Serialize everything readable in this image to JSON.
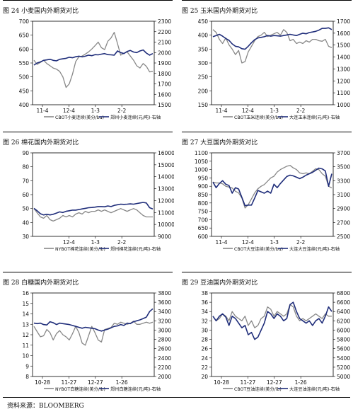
{
  "source": "资料来源：BLOOMBERG",
  "chart_data": [
    {
      "type": "line",
      "title": "图 24 小麦国内外期货对比",
      "x_ticks": [
        "11-4",
        "12-4",
        "1-3",
        "2-2"
      ],
      "left_axis": {
        "ylim": [
          400,
          700
        ],
        "ticks": [
          400,
          450,
          500,
          550,
          600,
          650,
          700
        ]
      },
      "right_axis": {
        "ylim": [
          1500,
          2300
        ],
        "ticks": [
          1500,
          1600,
          1700,
          1800,
          1900,
          2000,
          2100,
          2200,
          2300
        ]
      },
      "series": [
        {
          "name": "CBOT小麦连续(美分/bu)",
          "axis": "left",
          "color": "#888888",
          "values": [
            560,
            545,
            552,
            560,
            548,
            540,
            532,
            528,
            520,
            500,
            462,
            475,
            510,
            555,
            572,
            575,
            582,
            590,
            600,
            612,
            625,
            605,
            598,
            628,
            640,
            660,
            620,
            578,
            585,
            590,
            575,
            560,
            540,
            532,
            548,
            538,
            518,
            520
          ]
        },
        {
          "name": "郑州小麦连续(元/吨)-右轴",
          "axis": "right",
          "color": "#1f2d7a",
          "values": [
            1880,
            1900,
            1910,
            1925,
            1930,
            1935,
            1925,
            1920,
            1935,
            1940,
            1945,
            1955,
            1950,
            1960,
            1965,
            1958,
            1965,
            1975,
            1970,
            1980,
            1978,
            1985,
            1990,
            1980,
            1978,
            1975,
            2015,
            2000,
            1990,
            2010,
            2020,
            2005,
            2000,
            2015,
            2025,
            1995,
            1975,
            1990
          ]
        }
      ]
    },
    {
      "type": "line",
      "title": "图 25 玉米国内外期货对比",
      "x_ticks": [
        "11-4",
        "12-4",
        "1-3",
        "2-2"
      ],
      "left_axis": {
        "ylim": [
          150,
          450
        ],
        "ticks": [
          150,
          200,
          250,
          300,
          350,
          400,
          450
        ]
      },
      "right_axis": {
        "ylim": [
          1000,
          1700
        ],
        "ticks": [
          1000,
          1100,
          1200,
          1300,
          1400,
          1500,
          1600,
          1700
        ]
      },
      "series": [
        {
          "name": "CBOT玉米连续(美分/bu)",
          "axis": "left",
          "color": "#888888",
          "values": [
            420,
            410,
            385,
            370,
            390,
            365,
            350,
            330,
            345,
            300,
            305,
            340,
            360,
            380,
            395,
            400,
            410,
            395,
            400,
            405,
            410,
            400,
            420,
            410,
            380,
            385,
            370,
            375,
            370,
            380,
            375,
            385,
            385,
            380,
            378,
            385,
            360,
            355
          ]
        },
        {
          "name": "大连玉米连续(元/吨)-右轴",
          "axis": "right",
          "color": "#1f2d7a",
          "values": [
            1570,
            1580,
            1590,
            1575,
            1555,
            1540,
            1510,
            1490,
            1485,
            1470,
            1465,
            1490,
            1520,
            1545,
            1560,
            1565,
            1570,
            1580,
            1575,
            1580,
            1578,
            1575,
            1580,
            1585,
            1590,
            1585,
            1580,
            1590,
            1600,
            1595,
            1605,
            1610,
            1615,
            1625,
            1640,
            1640,
            1645,
            1630
          ]
        }
      ]
    },
    {
      "type": "line",
      "title": "图 26 棉花国内外期货对比",
      "x_ticks": [
        "12-4",
        "1-3",
        "2-2"
      ],
      "left_axis": {
        "ylim": [
          30,
          90
        ],
        "ticks": [
          30,
          40,
          50,
          60,
          70,
          80,
          90
        ]
      },
      "right_axis": {
        "ylim": [
          9000,
          16000
        ],
        "ticks": [
          9000,
          10000,
          11000,
          12000,
          13000,
          14000,
          15000,
          16000
        ]
      },
      "series": [
        {
          "name": "NYBOT棉花连续(美分/lb)",
          "axis": "left",
          "color": "#888888",
          "values": [
            50,
            47,
            44,
            43,
            45,
            42,
            41,
            42,
            43,
            45,
            44,
            45,
            44,
            46,
            47,
            46,
            48,
            47,
            48,
            48,
            49,
            48,
            49,
            48,
            47,
            48,
            49,
            50,
            49,
            48,
            49,
            50,
            49,
            47,
            45,
            44,
            44,
            44
          ]
        },
        {
          "name": "郑州棉花连续(元/吨)-右轴",
          "axis": "right",
          "color": "#1f2d7a",
          "values": [
            11350,
            11150,
            10900,
            10800,
            10850,
            10800,
            10850,
            10950,
            11050,
            11000,
            11100,
            11150,
            11200,
            11200,
            11250,
            11300,
            11350,
            11400,
            11420,
            11450,
            11500,
            11500,
            11480,
            11550,
            11500,
            11600,
            11650,
            11700,
            11680,
            11700,
            11720,
            11700,
            11750,
            11800,
            11850,
            11800,
            11400,
            11300
          ]
        }
      ]
    },
    {
      "type": "line",
      "title": "图 27 大豆国内外期货对比",
      "x_ticks": [
        "11-4",
        "12-4",
        "1-3",
        "2-2"
      ],
      "left_axis": {
        "ylim": [
          600,
          1100
        ],
        "ticks": [
          600,
          650,
          700,
          750,
          800,
          850,
          900,
          950,
          1000,
          1050,
          1100
        ]
      },
      "right_axis": {
        "ylim": [
          2500,
          3700
        ],
        "ticks": [
          2500,
          2700,
          2900,
          3100,
          3300,
          3500,
          3700
        ]
      },
      "series": [
        {
          "name": "CBOT大豆连续(美分/bu)",
          "axis": "left",
          "color": "#888888",
          "values": [
            925,
            920,
            920,
            915,
            900,
            895,
            890,
            870,
            860,
            830,
            770,
            790,
            825,
            860,
            885,
            900,
            910,
            930,
            950,
            960,
            985,
            1000,
            1010,
            1020,
            1025,
            1010,
            1000,
            980,
            975,
            980,
            975,
            990,
            1005,
            1000,
            975,
            960,
            900,
            890
          ]
        },
        {
          "name": "大连大豆连续(元/吨)-右轴",
          "axis": "right",
          "color": "#1f2d7a",
          "values": [
            3280,
            3200,
            3260,
            3300,
            3250,
            3230,
            3120,
            3200,
            3180,
            3060,
            2940,
            2950,
            2950,
            3050,
            3160,
            3140,
            3120,
            3150,
            3120,
            3250,
            3200,
            3260,
            3310,
            3360,
            3380,
            3370,
            3350,
            3330,
            3350,
            3380,
            3400,
            3420,
            3450,
            3480,
            3470,
            3440,
            3220,
            3400
          ]
        }
      ]
    },
    {
      "type": "line",
      "title": "图 28 白糖国内外期货对比",
      "x_ticks": [
        "10-28",
        "11-27",
        "12-27",
        "1-26"
      ],
      "left_axis": {
        "ylim": [
          8,
          16
        ],
        "ticks": [
          8,
          9,
          10,
          11,
          12,
          13,
          14,
          15,
          16
        ]
      },
      "right_axis": {
        "ylim": [
          2000,
          3800
        ],
        "ticks": [
          2000,
          2200,
          2400,
          2600,
          2800,
          3000,
          3200,
          3400,
          3600,
          3800
        ]
      },
      "series": [
        {
          "name": "NYBOT白糖连续(美分/lb)",
          "axis": "left",
          "color": "#888888",
          "values": [
            12.8,
            12.3,
            11.8,
            11.9,
            12.5,
            12.2,
            11.5,
            12.1,
            12.4,
            12.0,
            11.8,
            11.5,
            12.1,
            12.8,
            12.2,
            11.2,
            11.0,
            11.9,
            12.8,
            12.2,
            11.5,
            11.3,
            12.5,
            12.6,
            12.7,
            13.1,
            13.0,
            13.2,
            13.1,
            13.0,
            13.1,
            13.3,
            13.0,
            13.0,
            13.1,
            13.2,
            13.1,
            13.2
          ]
        },
        {
          "name": "郑州白糖连续(元/吨)-右轴",
          "axis": "right",
          "color": "#1f2d7a",
          "values": [
            3150,
            3140,
            3150,
            3120,
            3110,
            3180,
            3160,
            3120,
            3150,
            3140,
            3130,
            3120,
            3100,
            3080,
            3060,
            3040,
            3060,
            3050,
            3040,
            3030,
            3000,
            2980,
            3000,
            3020,
            3050,
            3080,
            3090,
            3120,
            3100,
            3150,
            3140,
            3180,
            3200,
            3220,
            3250,
            3280,
            3400,
            3460
          ]
        }
      ]
    },
    {
      "type": "line",
      "title": "图 29 豆油国内外期货对比",
      "x_ticks": [
        "10-28",
        "11-27",
        "12-27",
        "1-26"
      ],
      "left_axis": {
        "ylim": [
          20,
          38
        ],
        "ticks": [
          20,
          22,
          24,
          26,
          28,
          30,
          32,
          34,
          36,
          38
        ]
      },
      "right_axis": {
        "ylim": [
          5000,
          6800
        ],
        "ticks": [
          5000,
          5200,
          5400,
          5600,
          5800,
          6000,
          6200,
          6400,
          6600,
          6800
        ]
      },
      "series": [
        {
          "name": "CBOT豆油连续(美分/lb)",
          "axis": "left",
          "color": "#888888",
          "values": [
            33.0,
            32.0,
            32.5,
            33.5,
            33.0,
            32.0,
            34.0,
            33.0,
            32.5,
            32.0,
            33.0,
            31.0,
            32.0,
            30.5,
            31.0,
            32.5,
            33.0,
            35.0,
            34.5,
            33.0,
            34.0,
            33.5,
            33.0,
            33.5,
            35.5,
            35.0,
            33.0,
            32.0,
            32.5,
            32.0,
            32.5,
            33.0,
            33.5,
            33.0,
            32.5,
            33.5,
            33.0,
            33.0
          ]
        },
        {
          "name": "大连豆油连续(元/吨)-右轴",
          "axis": "right",
          "color": "#1f2d7a",
          "values": [
            6300,
            6200,
            6300,
            6350,
            6280,
            6100,
            6300,
            6250,
            6150,
            6050,
            6100,
            5900,
            5950,
            5800,
            5850,
            6000,
            6150,
            6400,
            6350,
            6250,
            6350,
            6300,
            6200,
            6250,
            6550,
            6600,
            6400,
            6250,
            6200,
            6150,
            6200,
            6100,
            6200,
            6250,
            6150,
            6300,
            6500,
            6400
          ]
        }
      ]
    }
  ]
}
